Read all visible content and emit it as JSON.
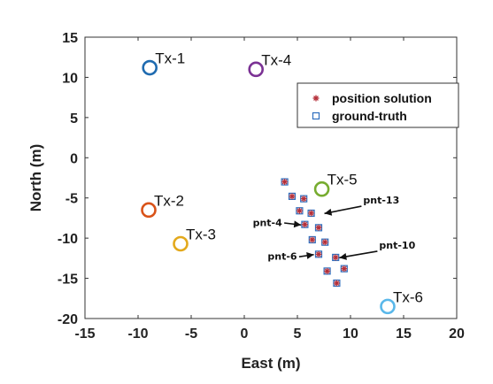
{
  "chart_data": {
    "type": "scatter",
    "xlabel": "East (m)",
    "ylabel": "North (m)",
    "xlim": [
      -15,
      20
    ],
    "ylim": [
      -20,
      15
    ],
    "xticks": [
      -15,
      -10,
      -5,
      0,
      5,
      10,
      15,
      20
    ],
    "yticks": [
      15,
      10,
      5,
      0,
      -5,
      -10,
      -15,
      -20
    ],
    "grid": false,
    "legend_position": "top-right",
    "legend": [
      {
        "label": "position solution",
        "marker": "asterisk",
        "color": "#b5303a"
      },
      {
        "label": "ground-truth",
        "marker": "square",
        "color": "#2f6fbf"
      }
    ],
    "transmitters": [
      {
        "label": "Tx-1",
        "x": -8.9,
        "y": 11.2,
        "color": "#1f6bb0"
      },
      {
        "label": "Tx-4",
        "x": 1.1,
        "y": 11.0,
        "color": "#7b3294"
      },
      {
        "label": "Tx-5",
        "x": 7.3,
        "y": -3.9,
        "color": "#77ac30"
      },
      {
        "label": "Tx-2",
        "x": -9.0,
        "y": -6.5,
        "color": "#d95319"
      },
      {
        "label": "Tx-3",
        "x": -6.0,
        "y": -10.7,
        "color": "#e3a91c"
      },
      {
        "label": "Tx-6",
        "x": 13.5,
        "y": -18.5,
        "color": "#5ab8ea"
      }
    ],
    "points": [
      {
        "x": 3.8,
        "y": -3.0
      },
      {
        "x": 4.5,
        "y": -4.8
      },
      {
        "x": 5.6,
        "y": -5.1
      },
      {
        "x": 5.2,
        "y": -6.6
      },
      {
        "x": 6.3,
        "y": -6.9
      },
      {
        "x": 5.7,
        "y": -8.3
      },
      {
        "x": 7.0,
        "y": -8.7
      },
      {
        "x": 6.4,
        "y": -10.2
      },
      {
        "x": 7.6,
        "y": -10.5
      },
      {
        "x": 7.0,
        "y": -12.0
      },
      {
        "x": 8.6,
        "y": -12.4
      },
      {
        "x": 7.8,
        "y": -14.1
      },
      {
        "x": 9.4,
        "y": -13.8
      },
      {
        "x": 8.7,
        "y": -15.6
      }
    ],
    "annotations": [
      {
        "label": "pnt-13",
        "x": 7.3,
        "y": -7.0,
        "text_x": 11.2,
        "text_y": -5.7,
        "anchor": "start"
      },
      {
        "label": "pnt-4",
        "x": 5.6,
        "y": -8.4,
        "text_x": 0.8,
        "text_y": -8.5,
        "anchor": "start"
      },
      {
        "label": "pnt-6",
        "x": 6.8,
        "y": -12.0,
        "text_x": 2.2,
        "text_y": -12.7,
        "anchor": "start"
      },
      {
        "label": "pnt-10",
        "x": 8.7,
        "y": -12.5,
        "text_x": 12.7,
        "text_y": -11.3,
        "anchor": "start"
      }
    ]
  }
}
